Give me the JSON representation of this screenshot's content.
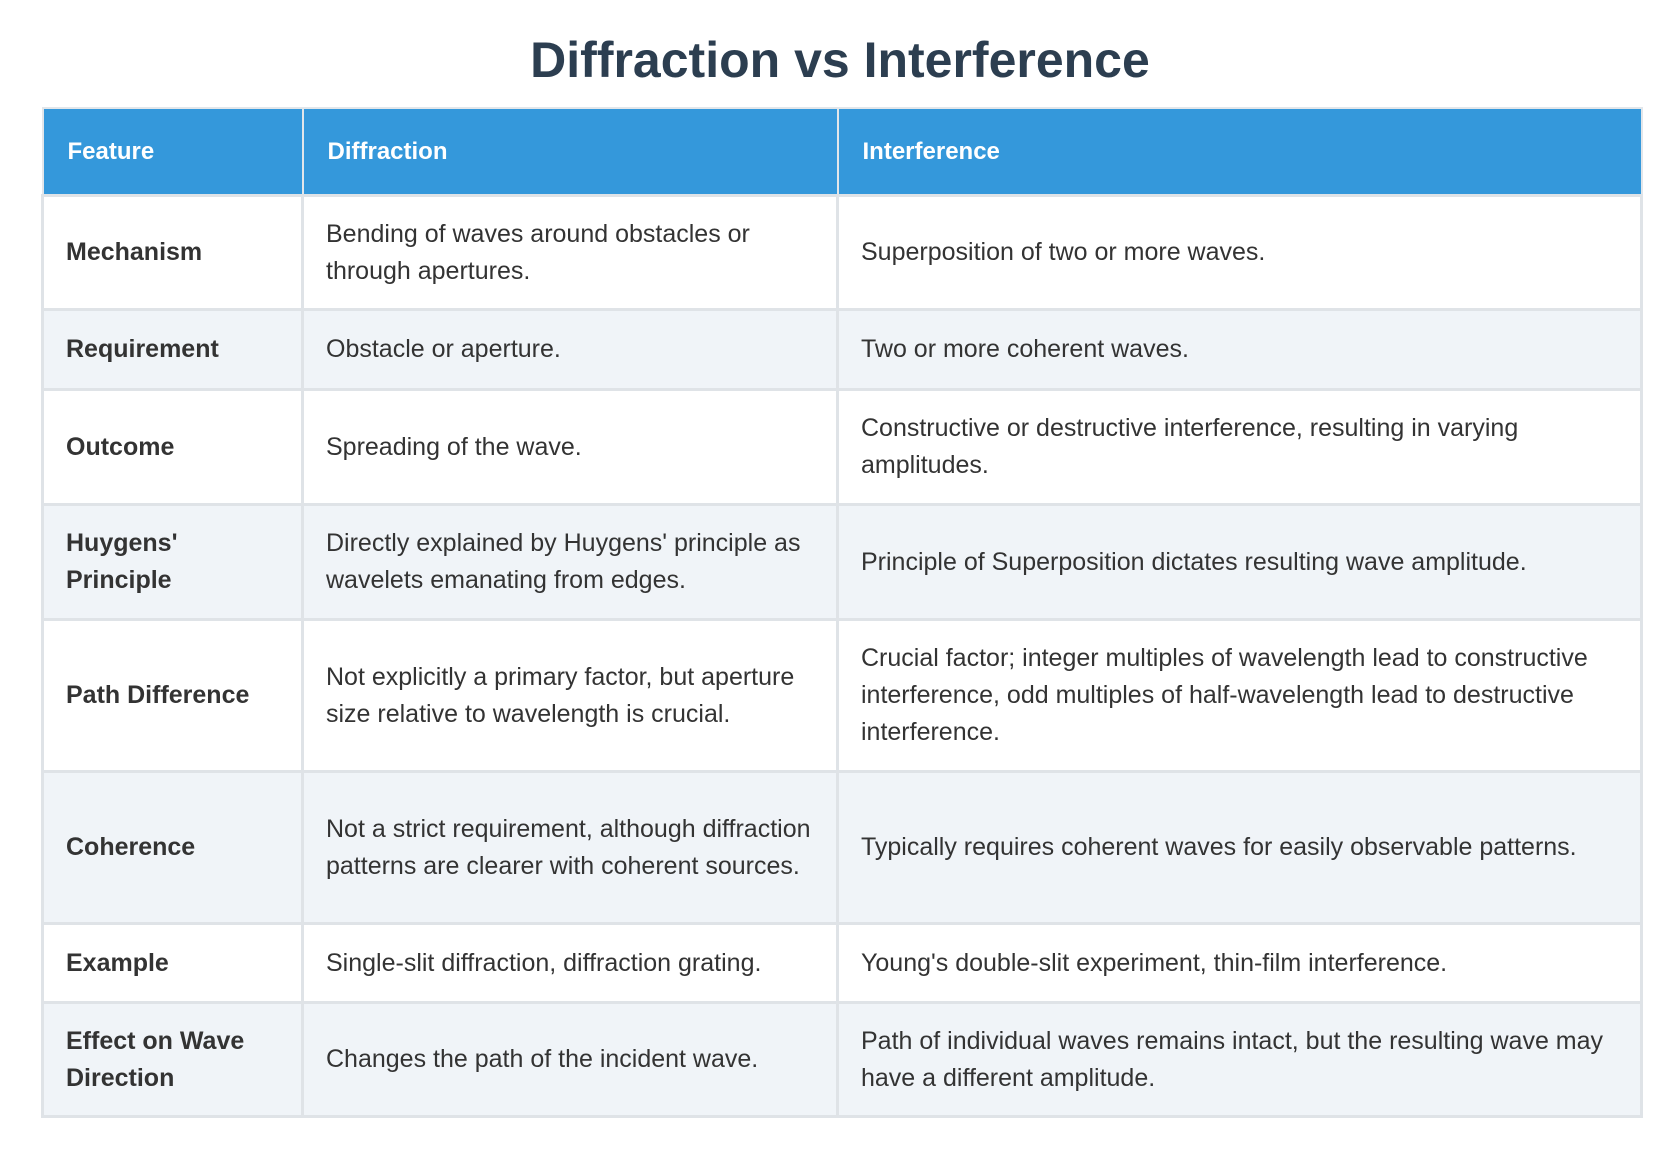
{
  "title": "Diffraction vs Interference",
  "table": {
    "headers": [
      "Feature",
      "Diffraction",
      "Interference"
    ],
    "rows": [
      {
        "feature": "Mechanism",
        "diffraction": "Bending of waves around obstacles or through apertures.",
        "interference": "Superposition of two or more waves."
      },
      {
        "feature": "Requirement",
        "diffraction": "Obstacle or aperture.",
        "interference": "Two or more coherent waves."
      },
      {
        "feature": "Outcome",
        "diffraction": "Spreading of the wave.",
        "interference": "Constructive or destructive interference, resulting in varying amplitudes."
      },
      {
        "feature": "Huygens' Principle",
        "diffraction": "Directly explained by Huygens' principle as wavelets emanating from edges.",
        "interference": "Principle of Superposition dictates resulting wave amplitude."
      },
      {
        "feature": "Path Difference",
        "diffraction": "Not explicitly a primary factor, but aperture size relative to wavelength is crucial.",
        "interference": "Crucial factor; integer multiples of wavelength lead to constructive interference, odd multiples of half-wavelength lead to destructive interference."
      },
      {
        "feature": "Coherence",
        "diffraction": "Not a strict requirement, although diffraction patterns are clearer with coherent sources.",
        "interference": "Typically requires coherent waves for easily observable patterns."
      },
      {
        "feature": "Example",
        "diffraction": "Single-slit diffraction, diffraction grating.",
        "interference": "Young's double-slit experiment, thin-film interference."
      },
      {
        "feature": "Effect on Wave Direction",
        "diffraction": "Changes the path of the incident wave.",
        "interference": "Path of individual waves remains intact, but the resulting wave may have a different amplitude."
      }
    ]
  },
  "colors": {
    "header_bg": "#3498db",
    "title": "#2c3e50",
    "row_alt": "#f0f4f8"
  }
}
